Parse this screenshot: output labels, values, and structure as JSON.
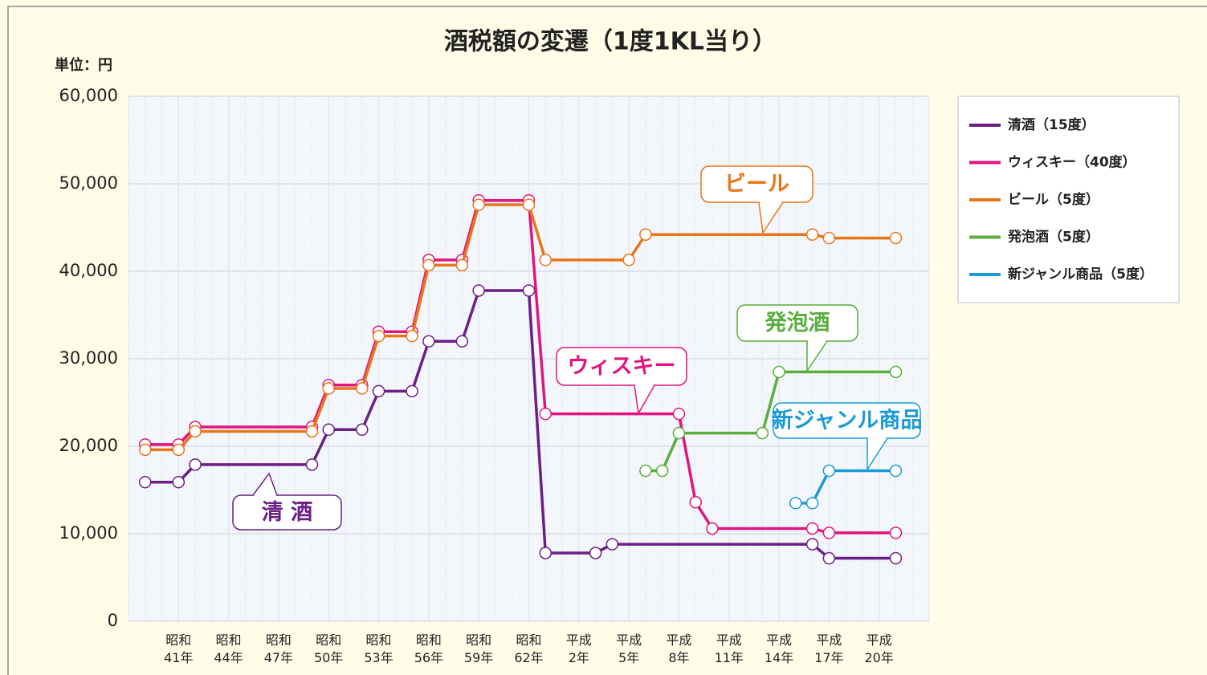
{
  "chart_data": {
    "type": "line",
    "title": "酒税額の変遷（1度1KL当り）",
    "unit_label": "単位：円",
    "xlim": [
      1963,
      2011
    ],
    "xticks": [
      {
        "value": 1966,
        "label": "昭和\n41年"
      },
      {
        "value": 1969,
        "label": "昭和\n44年"
      },
      {
        "value": 1972,
        "label": "昭和\n47年"
      },
      {
        "value": 1975,
        "label": "昭和\n50年"
      },
      {
        "value": 1978,
        "label": "昭和\n53年"
      },
      {
        "value": 1981,
        "label": "昭和\n56年"
      },
      {
        "value": 1984,
        "label": "昭和\n59年"
      },
      {
        "value": 1987,
        "label": "昭和\n62年"
      },
      {
        "value": 1990,
        "label": "平成\n2年"
      },
      {
        "value": 1993,
        "label": "平成\n5年"
      },
      {
        "value": 1996,
        "label": "平成\n8年"
      },
      {
        "value": 1999,
        "label": "平成\n11年"
      },
      {
        "value": 2002,
        "label": "平成\n14年"
      },
      {
        "value": 2005,
        "label": "平成\n17年"
      },
      {
        "value": 2008,
        "label": "平成\n20年"
      }
    ],
    "ylim": [
      0,
      60000
    ],
    "yticks": [
      0,
      {
        "value": 10000,
        "label": "10,000"
      },
      {
        "value": 20000,
        "label": "20,000"
      },
      {
        "value": 30000,
        "label": "30,000"
      },
      {
        "value": 40000,
        "label": "40,000"
      },
      {
        "value": 50000,
        "label": "50,000"
      },
      {
        "value": 60000,
        "label": "60,000"
      }
    ],
    "grid": true,
    "legend": "right",
    "series": [
      {
        "name": "清酒（15度）",
        "callout": "清 酒",
        "color": "#6b1f86",
        "x": [
          1964,
          1966,
          1967,
          1974,
          1975,
          1977,
          1978,
          1980,
          1981,
          1983,
          1984,
          1987,
          1988,
          1991,
          1992,
          2004,
          2005,
          2009
        ],
        "values": [
          15900,
          15900,
          17900,
          17900,
          21900,
          21900,
          26300,
          26300,
          32000,
          32000,
          37800,
          37800,
          7800,
          7800,
          8800,
          8800,
          7200,
          7200
        ]
      },
      {
        "name": "ウィスキー（40度）",
        "callout": "ウィスキー",
        "color": "#e0157f",
        "x": [
          1964,
          1966,
          1967,
          1974,
          1975,
          1977,
          1978,
          1980,
          1981,
          1983,
          1984,
          1987,
          1988,
          1996,
          1997,
          1998,
          2004,
          2005,
          2009
        ],
        "values": [
          20200,
          20200,
          22200,
          22200,
          27000,
          27000,
          33100,
          33100,
          41300,
          41300,
          48100,
          48100,
          23700,
          23700,
          13600,
          10600,
          10600,
          10100,
          10100
        ]
      },
      {
        "name": "ビール（5度）",
        "callout": "ビール",
        "color": "#e8751a",
        "x": [
          1964,
          1966,
          1967,
          1974,
          1975,
          1977,
          1978,
          1980,
          1981,
          1983,
          1984,
          1987,
          1988,
          1993,
          1994,
          2004,
          2005,
          2009
        ],
        "values": [
          19600,
          19600,
          21700,
          21700,
          26600,
          26600,
          32600,
          32600,
          40700,
          40700,
          47600,
          47600,
          41300,
          41300,
          44200,
          44200,
          43800,
          43800
        ]
      },
      {
        "name": "発泡酒（5度）",
        "callout": "発泡酒",
        "color": "#5aae3c",
        "x": [
          1994,
          1995,
          1996,
          2001,
          2002,
          2009
        ],
        "values": [
          17200,
          17200,
          21500,
          21500,
          28500,
          28500
        ]
      },
      {
        "name": "新ジャンル商品（5度）",
        "callout": "新ジャンル商品",
        "color": "#1a9ad8",
        "x": [
          2003,
          2004,
          2005,
          2009
        ],
        "values": [
          13500,
          13500,
          17200,
          17200
        ]
      }
    ]
  }
}
